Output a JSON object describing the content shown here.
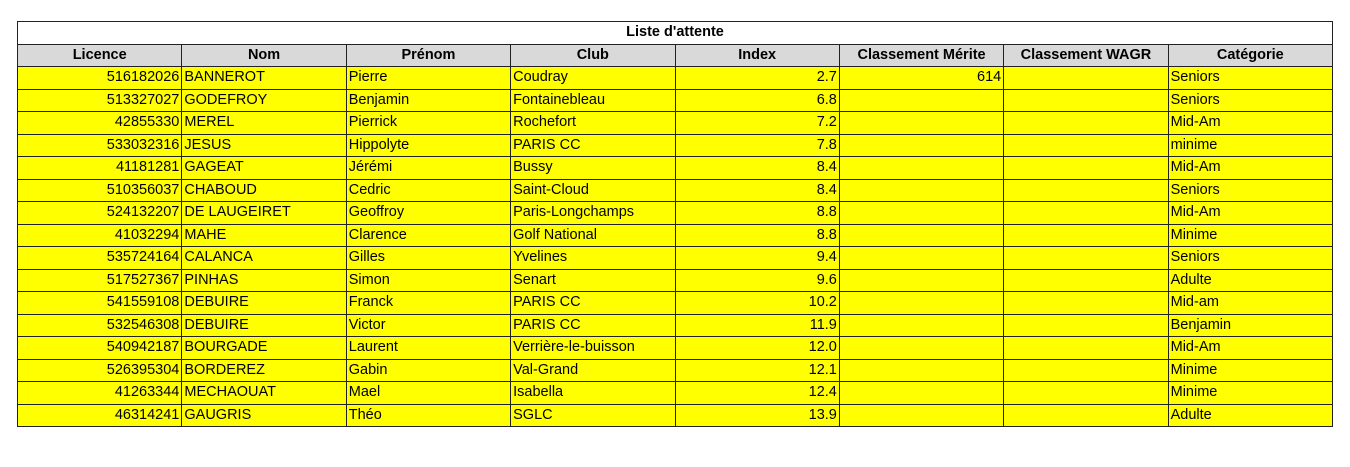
{
  "title": "Liste d'attente",
  "columns": [
    "Licence",
    "Nom",
    "Prénom",
    "Club",
    "Index",
    "Classement Mérite",
    "Classement WAGR",
    "Catégorie"
  ],
  "colors": {
    "row_fill": "#ffff00",
    "header_fill": "#d9d9d9"
  },
  "rows": [
    [
      "516182026",
      "BANNEROT",
      "Pierre",
      "Coudray",
      "2.7",
      "614",
      "",
      "Seniors"
    ],
    [
      "513327027",
      "GODEFROY",
      "Benjamin",
      "Fontainebleau",
      "6.8",
      "",
      "",
      "Seniors"
    ],
    [
      "42855330",
      "MEREL",
      "Pierrick",
      "Rochefort",
      "7.2",
      "",
      "",
      "Mid-Am"
    ],
    [
      "533032316",
      "JESUS",
      "Hippolyte",
      "PARIS CC",
      "7.8",
      "",
      "",
      "minime"
    ],
    [
      "41181281",
      "GAGEAT",
      "Jérémi",
      "Bussy",
      "8.4",
      "",
      "",
      "Mid-Am"
    ],
    [
      "510356037",
      "CHABOUD",
      "Cedric",
      "Saint-Cloud",
      "8.4",
      "",
      "",
      "Seniors"
    ],
    [
      "524132207",
      "DE LAUGEIRET",
      "Geoffroy",
      "Paris-Longchamps",
      "8.8",
      "",
      "",
      "Mid-Am"
    ],
    [
      "41032294",
      "MAHE",
      "Clarence",
      "Golf National",
      "8.8",
      "",
      "",
      "Minime"
    ],
    [
      "535724164",
      "CALANCA",
      "Gilles",
      "Yvelines",
      "9.4",
      "",
      "",
      "Seniors"
    ],
    [
      "517527367",
      "PINHAS",
      "Simon",
      "Senart",
      "9.6",
      "",
      "",
      "Adulte"
    ],
    [
      "541559108",
      "DEBUIRE",
      "Franck",
      "PARIS CC",
      "10.2",
      "",
      "",
      "Mid-am"
    ],
    [
      "532546308",
      "DEBUIRE",
      "Victor",
      "PARIS CC",
      "11.9",
      "",
      "",
      "Benjamin"
    ],
    [
      "540942187",
      "BOURGADE",
      "Laurent",
      "Verrière-le-buisson",
      "12.0",
      "",
      "",
      "Mid-Am"
    ],
    [
      "526395304",
      "BORDEREZ",
      "Gabin",
      "Val-Grand",
      "12.1",
      "",
      "",
      "Minime"
    ],
    [
      "41263344",
      "MECHAOUAT",
      "Mael",
      "Isabella",
      "12.4",
      "",
      "",
      "Minime"
    ],
    [
      "46314241",
      "GAUGRIS",
      "Théo",
      "SGLC",
      "13.9",
      "",
      "",
      "Adulte"
    ]
  ]
}
